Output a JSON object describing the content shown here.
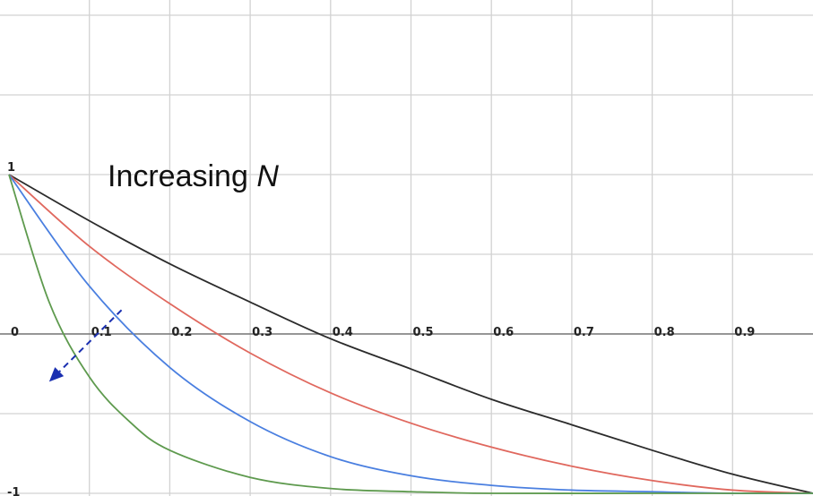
{
  "chart_data": {
    "type": "line",
    "xlim": [
      0,
      1
    ],
    "ylim": [
      -1,
      1
    ],
    "grid": true,
    "x_ticks": [
      {
        "value": 0,
        "label": "0"
      },
      {
        "value": 0.1,
        "label": "0.1"
      },
      {
        "value": 0.2,
        "label": "0.2"
      },
      {
        "value": 0.3,
        "label": "0.3"
      },
      {
        "value": 0.4,
        "label": "0.4"
      },
      {
        "value": 0.5,
        "label": "0.5"
      },
      {
        "value": 0.6,
        "label": "0.6"
      },
      {
        "value": 0.7,
        "label": "0.7"
      },
      {
        "value": 0.8,
        "label": "0.8"
      },
      {
        "value": 0.9,
        "label": "0.9"
      }
    ],
    "y_ticks": [
      {
        "value": 1,
        "label": "1"
      },
      {
        "value": -1,
        "label": "-1"
      }
    ],
    "series": [
      {
        "color": "#2b2b2b",
        "x": [
          0,
          0.1,
          0.2,
          0.3,
          0.4,
          0.5,
          0.6,
          0.7,
          0.8,
          0.9,
          1.0
        ],
        "y": [
          1,
          0.71,
          0.44,
          0.2,
          -0.03,
          -0.22,
          -0.41,
          -0.57,
          -0.73,
          -0.88,
          -1.0
        ]
      },
      {
        "color": "#e0685e",
        "x": [
          0,
          0.1,
          0.2,
          0.3,
          0.4,
          0.5,
          0.6,
          0.7,
          0.8,
          0.9,
          1.0
        ],
        "y": [
          1,
          0.55,
          0.19,
          -0.12,
          -0.37,
          -0.56,
          -0.71,
          -0.83,
          -0.92,
          -0.98,
          -1.0
        ]
      },
      {
        "color": "#4a7fe0",
        "x": [
          0,
          0.1,
          0.2,
          0.3,
          0.4,
          0.5,
          0.6,
          0.7,
          0.8,
          0.9,
          1.0
        ],
        "y": [
          1,
          0.3,
          -0.21,
          -0.55,
          -0.77,
          -0.89,
          -0.95,
          -0.98,
          -0.99,
          -1.0,
          -1.0
        ]
      },
      {
        "color": "#5e9a4e",
        "x": [
          0,
          0.05,
          0.1,
          0.15,
          0.2,
          0.3,
          0.4,
          0.5,
          0.6,
          0.8,
          1.0
        ],
        "y": [
          1,
          0.2,
          -0.27,
          -0.55,
          -0.73,
          -0.9,
          -0.97,
          -0.99,
          -1.0,
          -1.0,
          -1.0
        ]
      }
    ],
    "annotations": [
      {
        "text": "Increasing ",
        "text_italic": "N",
        "arrow_color": "#1a2fb0",
        "arrow_from": [
          0.14,
          0.15
        ],
        "arrow_to": [
          0.05,
          -0.3
        ]
      }
    ]
  }
}
